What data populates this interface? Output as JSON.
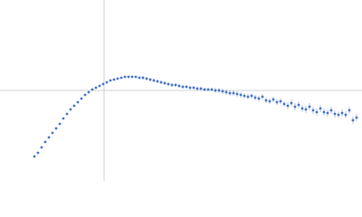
{
  "chart_data": {
    "type": "scatter",
    "color": "#4472c4",
    "grid": true,
    "tick_labels": false,
    "xlim": [
      -115,
      285
    ],
    "ylim": [
      -100,
      100
    ],
    "xticks": [
      0
    ],
    "yticks": [
      0
    ],
    "x": [
      -77,
      -73,
      -69,
      -65,
      -61,
      -57,
      -53,
      -49,
      -45,
      -41,
      -37,
      -33,
      -29,
      -25,
      -21,
      -17,
      -13,
      -9,
      -5,
      -1,
      3,
      7,
      11,
      15,
      19,
      23,
      27,
      31,
      35,
      39,
      43,
      47,
      51,
      55,
      59,
      63,
      67,
      71,
      75,
      79,
      83,
      87,
      91,
      95,
      99,
      103,
      107,
      111,
      115,
      119,
      123,
      127,
      131,
      135,
      139,
      143,
      147,
      151,
      155,
      159,
      163,
      167,
      171,
      175,
      179,
      183,
      187,
      191,
      195,
      199,
      203,
      207,
      211,
      215,
      219,
      223,
      227,
      231,
      235,
      239,
      243,
      247,
      251,
      255,
      259,
      263,
      267,
      271,
      275,
      279
    ],
    "values": [
      -73,
      -69,
      -63,
      -57,
      -52,
      -47,
      -42,
      -37,
      -31,
      -26,
      -21,
      -17,
      -13,
      -9,
      -5,
      -2,
      1,
      3,
      5,
      7,
      9,
      11,
      12,
      13,
      14,
      15,
      15,
      15,
      15,
      14,
      14,
      13,
      12,
      11,
      10,
      9,
      8,
      7,
      6,
      6,
      5,
      4,
      4,
      3,
      3,
      2,
      2,
      1,
      1,
      1,
      0,
      0,
      -1,
      -2,
      -3,
      -3,
      -4,
      -5,
      -6,
      -7,
      -6,
      -8,
      -9,
      -7,
      -11,
      -12,
      -10,
      -13,
      -12,
      -15,
      -17,
      -14,
      -18,
      -16,
      -20,
      -21,
      -18,
      -22,
      -24,
      -20,
      -24,
      -25,
      -22,
      -26,
      -27,
      -25,
      -27,
      -22,
      -33,
      -30
    ],
    "errors": [
      1,
      1,
      1,
      1,
      1,
      1,
      1,
      1,
      1,
      1,
      1,
      1,
      1,
      1,
      1,
      1,
      1,
      1,
      1,
      1,
      1,
      1,
      1,
      1,
      1,
      1,
      1,
      1,
      1,
      1,
      2,
      2,
      2,
      2,
      2,
      2,
      2,
      2,
      2,
      2,
      2,
      2,
      2,
      2,
      2,
      2,
      2,
      2,
      2,
      2,
      3,
      3,
      3,
      3,
      3,
      3,
      3,
      3,
      3,
      3,
      3,
      3,
      3,
      3,
      3,
      3,
      3,
      3,
      3,
      3,
      4,
      4,
      4,
      4,
      4,
      4,
      4,
      4,
      4,
      4,
      4,
      4,
      4,
      4,
      4,
      4,
      4,
      4,
      4,
      4
    ]
  }
}
